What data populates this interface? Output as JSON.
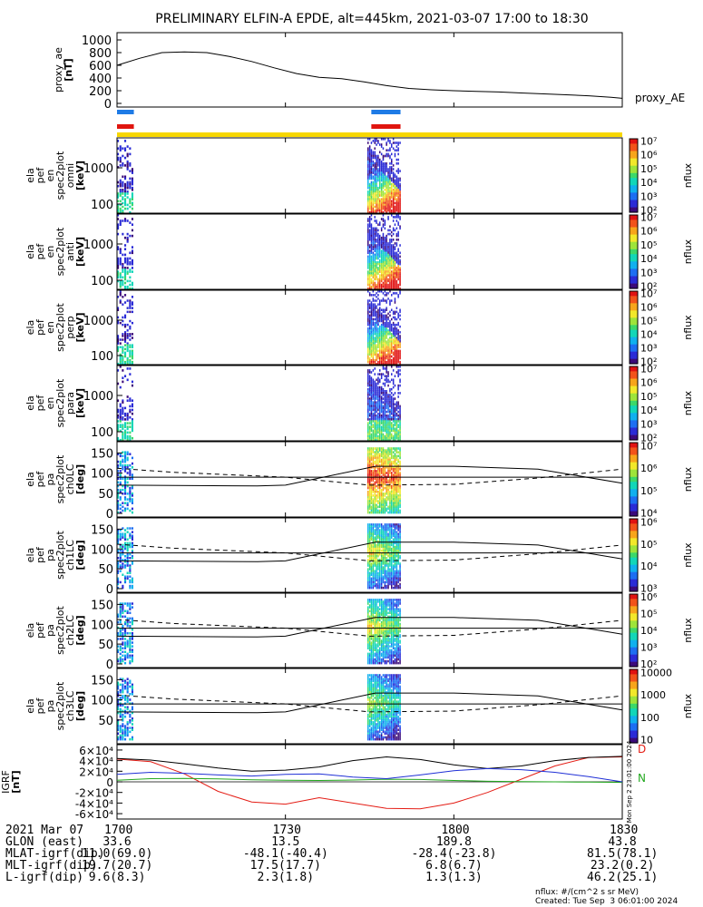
{
  "title": "PRELIMINARY ELFIN-A EPDE, alt=445km, 2021-03-07 17:00 to 18:30",
  "colors": {
    "bar_blue": "#1e7be6",
    "bar_red": "#e0150f",
    "bar_yellow": "#f7d700",
    "igrf_red": "#e41c14",
    "igrf_blue": "#1f2fd6",
    "igrf_green": "#22a81e"
  },
  "chart_data": [
    {
      "id": "proxy_ae",
      "type": "line",
      "ylabel_lines": [
        "proxy_ae",
        "[nT]"
      ],
      "series_label": "proxy_AE",
      "ylim": [
        0,
        1100
      ],
      "yticks": [
        "0",
        "200",
        "400",
        "600",
        "800",
        "1000"
      ],
      "x": [
        0,
        4,
        8,
        12,
        16,
        20,
        24,
        28,
        32,
        36,
        40,
        44,
        48,
        52,
        56,
        60,
        64,
        68,
        72,
        76,
        80,
        84,
        88,
        90
      ],
      "values": [
        600,
        710,
        800,
        810,
        800,
        740,
        660,
        560,
        470,
        410,
        390,
        340,
        280,
        235,
        215,
        200,
        190,
        180,
        165,
        150,
        135,
        120,
        95,
        80
      ]
    },
    {
      "id": "omni",
      "type": "heatmap",
      "ylabel_lines": [
        "ela",
        "pef",
        "en",
        "spec2plot",
        "omni",
        "[keV]"
      ],
      "yscale": "log",
      "yticks": [
        "100",
        "1000"
      ],
      "colorbar": {
        "title": "nflux",
        "ticks": [
          "10²",
          "10³",
          "10⁴",
          "10⁵",
          "10⁶",
          "10⁷"
        ]
      }
    },
    {
      "id": "anti",
      "type": "heatmap",
      "ylabel_lines": [
        "ela",
        "pef",
        "en",
        "spec2plot",
        "anti",
        "[keV]"
      ],
      "yscale": "log",
      "yticks": [
        "100",
        "1000"
      ],
      "colorbar": {
        "title": "nflux",
        "ticks": [
          "10²",
          "10³",
          "10⁴",
          "10⁵",
          "10⁶",
          "10⁷"
        ]
      }
    },
    {
      "id": "perp",
      "type": "heatmap",
      "ylabel_lines": [
        "ela",
        "pef",
        "en",
        "spec2plot",
        "perp",
        "[keV]"
      ],
      "yscale": "log",
      "yticks": [
        "100",
        "1000"
      ],
      "colorbar": {
        "title": "nflux",
        "ticks": [
          "10²",
          "10³",
          "10⁴",
          "10⁵",
          "10⁶",
          "10⁷"
        ]
      }
    },
    {
      "id": "para",
      "type": "heatmap",
      "ylabel_lines": [
        "ela",
        "pef",
        "en",
        "spec2plot",
        "para",
        "[keV]"
      ],
      "yscale": "log",
      "yticks": [
        "100",
        "1000"
      ],
      "colorbar": {
        "title": "nflux",
        "ticks": [
          "10²",
          "10³",
          "10⁴",
          "10⁵",
          "10⁶",
          "10⁷"
        ]
      }
    },
    {
      "id": "ch0LC",
      "type": "heatmap",
      "ylabel_lines": [
        "ela",
        "pef",
        "pa",
        "spec2plot",
        "ch0LC",
        "[deg]"
      ],
      "yticks": [
        "0",
        "50",
        "100",
        "150"
      ],
      "colorbar": {
        "title": "nflux",
        "ticks": [
          "10⁴",
          "10⁵",
          "10⁶",
          "10⁷"
        ]
      }
    },
    {
      "id": "ch1LC",
      "type": "heatmap",
      "ylabel_lines": [
        "ela",
        "pef",
        "pa",
        "spec2plot",
        "ch1LC",
        "[deg]"
      ],
      "yticks": [
        "0",
        "50",
        "100",
        "150"
      ],
      "colorbar": {
        "title": "nflux",
        "ticks": [
          "10³",
          "10⁴",
          "10⁵",
          "10⁶"
        ]
      }
    },
    {
      "id": "ch2LC",
      "type": "heatmap",
      "ylabel_lines": [
        "ela",
        "pef",
        "pa",
        "spec2plot",
        "ch2LC",
        "[deg]"
      ],
      "yticks": [
        "0",
        "50",
        "100",
        "150"
      ],
      "colorbar": {
        "title": "nflux",
        "ticks": [
          "10²",
          "10³",
          "10⁴",
          "10⁵",
          "10⁶"
        ]
      }
    },
    {
      "id": "ch3LC",
      "type": "heatmap",
      "ylabel_lines": [
        "ela",
        "pef",
        "pa",
        "spec2plot",
        "ch3LC",
        "[deg]"
      ],
      "yticks": [
        "50",
        "100",
        "150"
      ],
      "colorbar": {
        "title": "nflux",
        "ticks": [
          "10",
          "100",
          "1000",
          "10000"
        ]
      }
    },
    {
      "id": "igrf",
      "type": "line",
      "ylabel_lines": [
        "IGRF",
        "[nT]"
      ],
      "ylim": [
        -65000,
        65000
      ],
      "yticks": [
        "-6×10⁴",
        "-4×10⁴",
        "-2×10⁴",
        "0",
        "2×10⁴",
        "4×10⁴",
        "6×10⁴"
      ],
      "side_labels": [
        "D",
        "N"
      ],
      "stamp": "Mon Sep  2 23:01:00 2024",
      "x": [
        0,
        6,
        12,
        18,
        24,
        30,
        36,
        42,
        48,
        54,
        60,
        66,
        72,
        78,
        84,
        90
      ],
      "series": [
        {
          "name": "D",
          "color": "#e41c14",
          "values": [
            43000,
            38000,
            15000,
            -18000,
            -38000,
            -42000,
            -30000,
            -40000,
            -50000,
            -51000,
            -40000,
            -20000,
            5000,
            30000,
            46000,
            47000
          ]
        },
        {
          "name": "E",
          "color": "#000000",
          "values": [
            44000,
            41000,
            34000,
            26000,
            20000,
            22000,
            28000,
            40000,
            47000,
            42000,
            32000,
            25000,
            30000,
            40000,
            46000,
            48000
          ]
        },
        {
          "name": "N",
          "color": "#22a81e",
          "values": [
            3000,
            6000,
            6500,
            5500,
            4000,
            3000,
            2500,
            3500,
            5000,
            4500,
            2500,
            1000,
            300,
            0,
            -500,
            -1000
          ]
        },
        {
          "name": "B",
          "color": "#1f2fd6",
          "values": [
            14000,
            18000,
            16000,
            13000,
            11000,
            14000,
            15000,
            9000,
            6000,
            13000,
            21000,
            25000,
            23000,
            18000,
            10000,
            0
          ]
        }
      ]
    }
  ],
  "time_axis": {
    "ticks": [
      "1700",
      "1730",
      "1800",
      "1830"
    ],
    "rows": [
      {
        "label": "2021 Mar 07"
      },
      {
        "label": "GLON (east)",
        "values": [
          "33.6",
          "13.5",
          "189.8",
          "43.8"
        ]
      },
      {
        "label": "MLAT-igrf(dip)",
        "values": [
          "11.0(69.0)",
          "-48.1(-40.4)",
          "-28.4(-23.8)",
          "81.5(78.1)"
        ]
      },
      {
        "label": "MLT-igrf(dip)",
        "values": [
          "19.7(20.7)",
          "17.5(17.7)",
          "6.8(6.7)",
          "23.2(0.2)"
        ]
      },
      {
        "label": "L-igrf(dip)",
        "values": [
          "9.6(8.3)",
          "2.3(1.8)",
          "1.3(1.3)",
          "46.2(25.1)"
        ]
      }
    ]
  },
  "footer": {
    "units": "nflux: #/(cm^2 s sr MeV)",
    "created": "Created: Tue Sep  3 06:01:00 2024"
  }
}
